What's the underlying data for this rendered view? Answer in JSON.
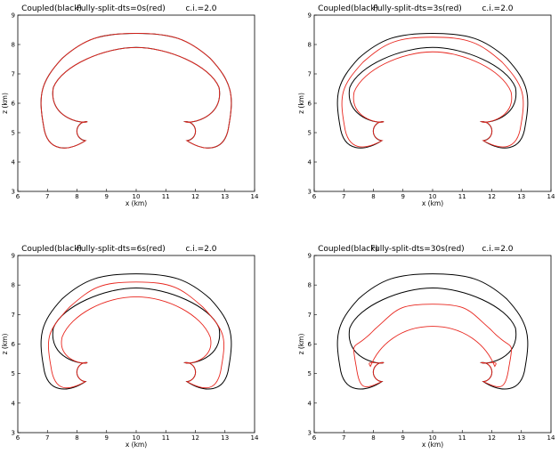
{
  "figure": {
    "panels": [
      {
        "title_left": "Coupled(black)",
        "title_mid": "Fully-split-dts=0s(red)",
        "title_right": "c.i.=2.0",
        "xlabel": "x (km)",
        "ylabel": "z (km)"
      },
      {
        "title_left": "Coupled(black)",
        "title_mid": "Fully-split-dts=3s(red)",
        "title_right": "c.i.=2.0",
        "xlabel": "x (km)",
        "ylabel": "z (km)"
      },
      {
        "title_left": "Coupled(black)",
        "title_mid": "Fully-split-dts=6s(red)",
        "title_right": "c.i.=2.0",
        "xlabel": "x (km)",
        "ylabel": "z (km)"
      },
      {
        "title_left": "Coupled(black)",
        "title_mid": "Fully-split-dts=30s(red)",
        "title_right": "c.i.=2.0",
        "xlabel": "x (km)",
        "ylabel": "z (km)"
      }
    ]
  },
  "colors": {
    "coupled": "#000000",
    "split": "#e8261e"
  },
  "chart_data": [
    {
      "type": "line",
      "title": "Coupled(black)    Fully-split-dts=0s(red)    c.i.=2.0",
      "xlabel": "x (km)",
      "ylabel": "z (km)",
      "xlim": [
        6,
        14
      ],
      "ylim": [
        3,
        9
      ],
      "xticks": [
        6,
        7,
        8,
        9,
        10,
        11,
        12,
        13,
        14
      ],
      "yticks": [
        3,
        4,
        5,
        6,
        7,
        8,
        9
      ],
      "series": [
        {
          "name": "Coupled(black)",
          "color": "#000000",
          "contours": [
            {
              "kind": "outer",
              "top": 8.38,
              "x_left": 6.75,
              "x_right": 13.25,
              "bottom": 4.3,
              "inner_top": 7.9,
              "inner_left": 7.2,
              "inner_right": 12.8
            }
          ]
        },
        {
          "name": "Fully-split-dts=0s(red)",
          "color": "#e8261e",
          "contours": [
            {
              "kind": "outer",
              "top": 8.38,
              "x_left": 6.75,
              "x_right": 13.25,
              "bottom": 4.3,
              "inner_top": 7.9,
              "inner_left": 7.2,
              "inner_right": 12.8
            }
          ]
        }
      ]
    },
    {
      "type": "line",
      "title": "Coupled(black)    Fully-split-dts=3s(red)    c.i.=2.0",
      "xlabel": "x (km)",
      "ylabel": "z (km)",
      "xlim": [
        6,
        14
      ],
      "ylim": [
        3,
        9
      ],
      "xticks": [
        6,
        7,
        8,
        9,
        10,
        11,
        12,
        13,
        14
      ],
      "yticks": [
        3,
        4,
        5,
        6,
        7,
        8,
        9
      ],
      "series": [
        {
          "name": "Coupled(black)",
          "color": "#000000",
          "contours": [
            {
              "kind": "outer",
              "top": 8.38,
              "x_left": 6.75,
              "x_right": 13.25,
              "bottom": 4.3,
              "inner_top": 7.9,
              "inner_left": 7.2,
              "inner_right": 12.8
            }
          ]
        },
        {
          "name": "Fully-split-dts=3s(red)",
          "color": "#e8261e",
          "contours": [
            {
              "kind": "outer",
              "top": 8.25,
              "x_left": 6.9,
              "x_right": 13.1,
              "bottom": 4.35,
              "inner_top": 7.75,
              "inner_left": 7.35,
              "inner_right": 12.65
            }
          ]
        }
      ]
    },
    {
      "type": "line",
      "title": "Coupled(black)    Fully-split-dts=6s(red)    c.i.=2.0",
      "xlabel": "x (km)",
      "ylabel": "z (km)",
      "xlim": [
        6,
        14
      ],
      "ylim": [
        3,
        9
      ],
      "xticks": [
        6,
        7,
        8,
        9,
        10,
        11,
        12,
        13,
        14
      ],
      "yticks": [
        3,
        4,
        5,
        6,
        7,
        8,
        9
      ],
      "series": [
        {
          "name": "Coupled(black)",
          "color": "#000000",
          "contours": [
            {
              "kind": "outer",
              "top": 8.38,
              "x_left": 6.75,
              "x_right": 13.25,
              "bottom": 4.3,
              "inner_top": 7.9,
              "inner_left": 7.2,
              "inner_right": 12.8
            }
          ]
        },
        {
          "name": "Fully-split-dts=6s(red)",
          "color": "#e8261e",
          "contours": [
            {
              "kind": "outer",
              "top": 8.1,
              "x_left": 7.0,
              "x_right": 13.0,
              "bottom": 4.35,
              "inner_top": 7.6,
              "inner_left": 7.5,
              "inner_right": 12.5
            }
          ]
        }
      ]
    },
    {
      "type": "line",
      "title": "Coupled(black)    Fully-split-dts=30s(red)    c.i.=2.0",
      "xlabel": "x (km)",
      "ylabel": "z (km)",
      "xlim": [
        6,
        14
      ],
      "ylim": [
        3,
        9
      ],
      "xticks": [
        6,
        7,
        8,
        9,
        10,
        11,
        12,
        13,
        14
      ],
      "yticks": [
        3,
        4,
        5,
        6,
        7,
        8,
        9
      ],
      "series": [
        {
          "name": "Coupled(black)",
          "color": "#000000",
          "contours": [
            {
              "kind": "outer",
              "top": 8.38,
              "x_left": 6.75,
              "x_right": 13.25,
              "bottom": 4.3,
              "inner_top": 7.9,
              "inner_left": 7.2,
              "inner_right": 12.8
            }
          ]
        },
        {
          "name": "Fully-split-dts=30s(red)",
          "color": "#e8261e",
          "contours": [
            {
              "kind": "outer",
              "top": 7.35,
              "x_left": 7.3,
              "x_right": 12.7,
              "bottom": 4.4,
              "inner_top": 6.6,
              "inner_left": 7.9,
              "inner_right": 12.1
            }
          ]
        }
      ]
    }
  ]
}
